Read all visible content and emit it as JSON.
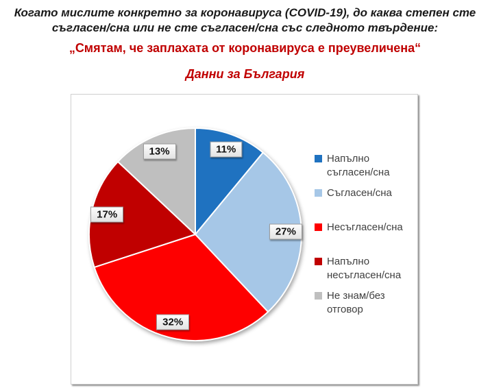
{
  "title": {
    "line1": "Когато мислите конкретно за коронавируса (COVID-19), до каква степен сте",
    "line2": "съгласен/сна или не сте съгласен/сна със следното твърдение:",
    "statement": "„Смятам, че заплахата от коронавируса е преувеличена“",
    "subtitle": "Данни за България"
  },
  "colors": {
    "title_text": "#1a1a1a",
    "accent_red": "#c00000",
    "panel_border": "#cfcfcf",
    "legend_text": "#404040"
  },
  "chart_data": {
    "type": "pie",
    "title": "Данни за България",
    "start_angle_deg": 0,
    "direction": "clockwise",
    "legend_position": "right",
    "data_labels": "percent, boxed, inside slices",
    "slices": [
      {
        "label": "Напълно съгласен/сна",
        "value": 11,
        "data_label": "11%",
        "color": "#1f72c0"
      },
      {
        "label": "Съгласен/сна",
        "value": 27,
        "data_label": "27%",
        "color": "#a6c7e7"
      },
      {
        "label": "Несъгласен/сна",
        "value": 32,
        "data_label": "32%",
        "color": "#fe0000"
      },
      {
        "label": "Напълно несъгласен/сна",
        "value": 17,
        "data_label": "17%",
        "color": "#c00000"
      },
      {
        "label": "Не знам/без отговор",
        "value": 13,
        "data_label": "13%",
        "color": "#bfbfbf"
      }
    ]
  }
}
